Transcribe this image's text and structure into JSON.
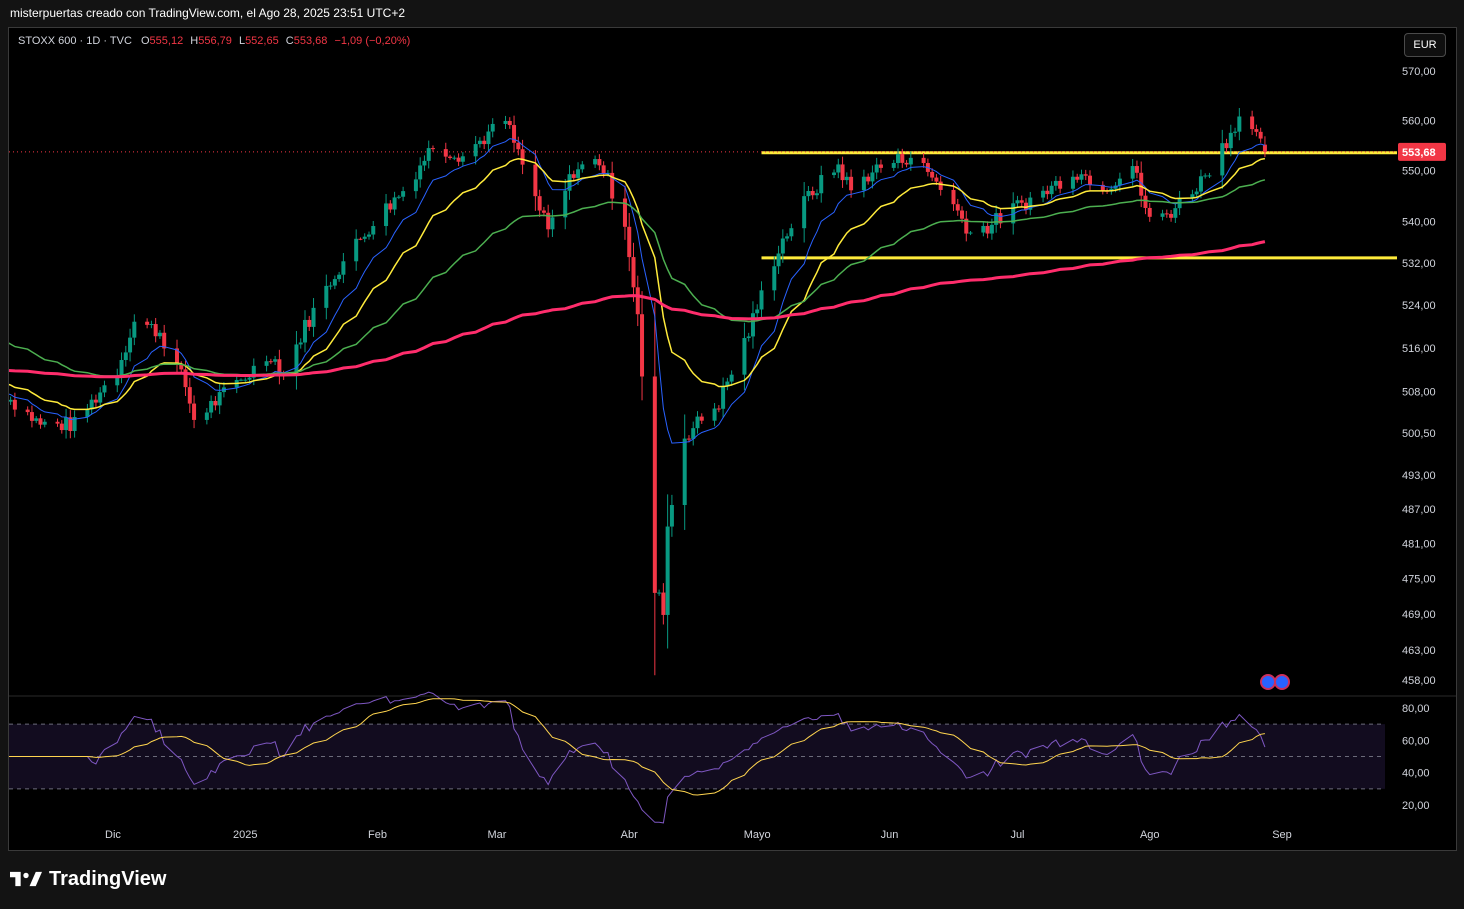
{
  "header": {
    "caption": "misterpuertas creado con TradingView.com, el Ago 28, 2025 23:51 UTC+2"
  },
  "legend": {
    "symbol": "STOXX 600 · 1D · TVC",
    "o_key": "O",
    "o_val": "555,12",
    "h_key": "H",
    "h_val": "556,79",
    "l_key": "L",
    "l_val": "552,65",
    "c_key": "C",
    "c_val": "553,68",
    "change": "−1,09 (−0,20%)"
  },
  "currency": "EUR",
  "brand": "TradingView",
  "colors": {
    "up": "#089981",
    "down": "#f23645",
    "ema_blue": "#2962ff",
    "ema_yellow": "#ffeb3b",
    "ema_green": "#4caf50",
    "ema_red": "#ff2d6c",
    "level_lines": "#ffeb3b",
    "rsi": "#7e57c2",
    "rsi_ma": "#ffd54f"
  },
  "chart_data": {
    "type": "candlestick",
    "symbol": "STOXX 600",
    "interval": "1D",
    "source": "TVC",
    "currency": "EUR",
    "last_price": 553.68,
    "last_price_label": "553,68",
    "price_axis": {
      "ticks": [
        570,
        560,
        550,
        540,
        532,
        524,
        516,
        508,
        500.5,
        493,
        487,
        481,
        475,
        469,
        463,
        458
      ],
      "tick_labels": [
        "570,00",
        "560,00",
        "550,00",
        "540,00",
        "532,00",
        "524,00",
        "516,00",
        "508,00",
        "500,50",
        "493,00",
        "487,00",
        "481,00",
        "475,00",
        "469,00",
        "463,00",
        "458,00"
      ],
      "range": [
        455,
        575
      ],
      "scale": "log"
    },
    "time_axis": {
      "labels": [
        "Dic",
        "2025",
        "Feb",
        "Mar",
        "Abr",
        "Mayo",
        "Jun",
        "Jul",
        "Ago",
        "Sep"
      ],
      "label_dates": [
        "2024-12-01",
        "2025-01-01",
        "2025-02-01",
        "2025-03-01",
        "2025-04-01",
        "2025-05-01",
        "2025-06-01",
        "2025-07-01",
        "2025-08-01",
        "2025-09-01"
      ]
    },
    "horizontal_levels": [
      {
        "price": 553.5,
        "from": "2025-05-02",
        "to": "2025-09-30"
      },
      {
        "price": 533.0,
        "from": "2025-05-02",
        "to": "2025-09-30"
      }
    ],
    "rsi_panel": {
      "ticks": [
        80,
        60,
        40,
        20
      ],
      "tick_labels": [
        "80,00",
        "60,00",
        "40,00",
        "20,00"
      ],
      "band_upper": 70,
      "band_middle": 50,
      "band_lower": 30,
      "range": [
        15,
        85
      ]
    },
    "anchors": [
      {
        "date": "2024-11-05",
        "close": 508
      },
      {
        "date": "2024-11-14",
        "close": 502
      },
      {
        "date": "2024-11-22",
        "close": 502
      },
      {
        "date": "2024-12-02",
        "close": 512
      },
      {
        "date": "2024-12-06",
        "close": 521
      },
      {
        "date": "2024-12-12",
        "close": 519
      },
      {
        "date": "2024-12-18",
        "close": 509
      },
      {
        "date": "2024-12-20",
        "close": 503
      },
      {
        "date": "2024-12-31",
        "close": 510
      },
      {
        "date": "2025-01-07",
        "close": 515
      },
      {
        "date": "2025-01-10",
        "close": 511
      },
      {
        "date": "2025-01-15",
        "close": 520
      },
      {
        "date": "2025-01-22",
        "close": 530
      },
      {
        "date": "2025-01-31",
        "close": 540
      },
      {
        "date": "2025-02-07",
        "close": 546
      },
      {
        "date": "2025-02-14",
        "close": 555
      },
      {
        "date": "2025-02-21",
        "close": 553
      },
      {
        "date": "2025-03-03",
        "close": 560
      },
      {
        "date": "2025-03-07",
        "close": 551
      },
      {
        "date": "2025-03-13",
        "close": 538
      },
      {
        "date": "2025-03-19",
        "close": 550
      },
      {
        "date": "2025-03-25",
        "close": 552
      },
      {
        "date": "2025-03-31",
        "close": 540
      },
      {
        "date": "2025-04-03",
        "close": 522
      },
      {
        "date": "2025-04-07",
        "close": 473
      },
      {
        "date": "2025-04-09",
        "close": 470
      },
      {
        "date": "2025-04-10",
        "close": 484
      },
      {
        "date": "2025-04-14",
        "close": 500
      },
      {
        "date": "2025-04-22",
        "close": 506
      },
      {
        "date": "2025-04-29",
        "close": 519
      },
      {
        "date": "2025-05-06",
        "close": 535
      },
      {
        "date": "2025-05-13",
        "close": 545
      },
      {
        "date": "2025-05-20",
        "close": 551
      },
      {
        "date": "2025-05-23",
        "close": 546
      },
      {
        "date": "2025-05-28",
        "close": 550
      },
      {
        "date": "2025-06-06",
        "close": 553
      },
      {
        "date": "2025-06-13",
        "close": 547
      },
      {
        "date": "2025-06-20",
        "close": 538
      },
      {
        "date": "2025-06-24",
        "close": 539
      },
      {
        "date": "2025-07-01",
        "close": 543
      },
      {
        "date": "2025-07-08",
        "close": 546
      },
      {
        "date": "2025-07-14",
        "close": 550
      },
      {
        "date": "2025-07-22",
        "close": 547
      },
      {
        "date": "2025-07-28",
        "close": 551
      },
      {
        "date": "2025-08-01",
        "close": 540
      },
      {
        "date": "2025-08-06",
        "close": 542
      },
      {
        "date": "2025-08-13",
        "close": 548
      },
      {
        "date": "2025-08-19",
        "close": 556
      },
      {
        "date": "2025-08-22",
        "close": 561
      },
      {
        "date": "2025-08-28",
        "close": 553.68
      }
    ],
    "moving_averages": [
      {
        "period": 10,
        "color": "#2962ff"
      },
      {
        "period": 20,
        "color": "#ffeb3b"
      },
      {
        "period": 50,
        "color": "#4caf50"
      },
      {
        "period": 200,
        "color": "#ff2d6c"
      }
    ]
  }
}
